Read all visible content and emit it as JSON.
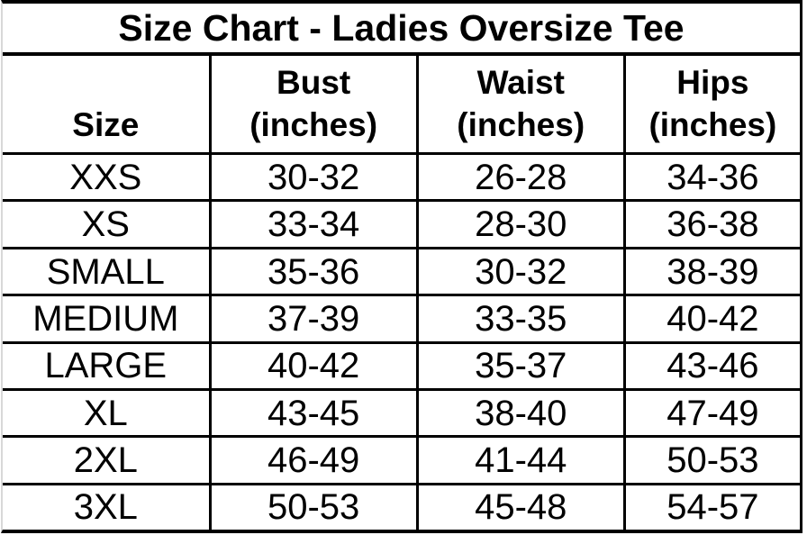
{
  "title": "Size Chart - Ladies Oversize Tee",
  "columns": [
    {
      "label": "Size",
      "sub": ""
    },
    {
      "label": "Bust",
      "sub": "(inches)"
    },
    {
      "label": "Waist",
      "sub": "(inches)"
    },
    {
      "label": "Hips",
      "sub": "(inches)"
    }
  ],
  "rows": [
    {
      "size": "XXS",
      "bust": "30-32",
      "waist": "26-28",
      "hips": "34-36"
    },
    {
      "size": "XS",
      "bust": "33-34",
      "waist": "28-30",
      "hips": "36-38"
    },
    {
      "size": "SMALL",
      "bust": "35-36",
      "waist": "30-32",
      "hips": "38-39"
    },
    {
      "size": "MEDIUM",
      "bust": "37-39",
      "waist": "33-35",
      "hips": "40-42"
    },
    {
      "size": "LARGE",
      "bust": "40-42",
      "waist": "35-37",
      "hips": "43-46"
    },
    {
      "size": "XL",
      "bust": "43-45",
      "waist": "38-40",
      "hips": "47-49"
    },
    {
      "size": "2XL",
      "bust": "46-49",
      "waist": "41-44",
      "hips": "50-53"
    },
    {
      "size": "3XL",
      "bust": "50-53",
      "waist": "45-48",
      "hips": "54-57"
    }
  ],
  "colors": {
    "background": "#ffffff",
    "text": "#000000",
    "grid_lines": "#000000",
    "left_edge": "#d8d8d8"
  },
  "chart_data": {
    "type": "table",
    "title": "Size Chart - Ladies Oversize Tee",
    "columns": [
      "Size",
      "Bust (inches)",
      "Waist (inches)",
      "Hips (inches)"
    ],
    "rows": [
      [
        "XXS",
        "30-32",
        "26-28",
        "34-36"
      ],
      [
        "XS",
        "33-34",
        "28-30",
        "36-38"
      ],
      [
        "SMALL",
        "35-36",
        "30-32",
        "38-39"
      ],
      [
        "MEDIUM",
        "37-39",
        "33-35",
        "40-42"
      ],
      [
        "LARGE",
        "40-42",
        "35-37",
        "43-46"
      ],
      [
        "XL",
        "43-45",
        "38-40",
        "47-49"
      ],
      [
        "2XL",
        "46-49",
        "41-44",
        "50-53"
      ],
      [
        "3XL",
        "50-53",
        "45-48",
        "54-57"
      ]
    ],
    "layout": {
      "grid": true,
      "header_rows": 2,
      "title_spans_all_columns": true
    }
  }
}
